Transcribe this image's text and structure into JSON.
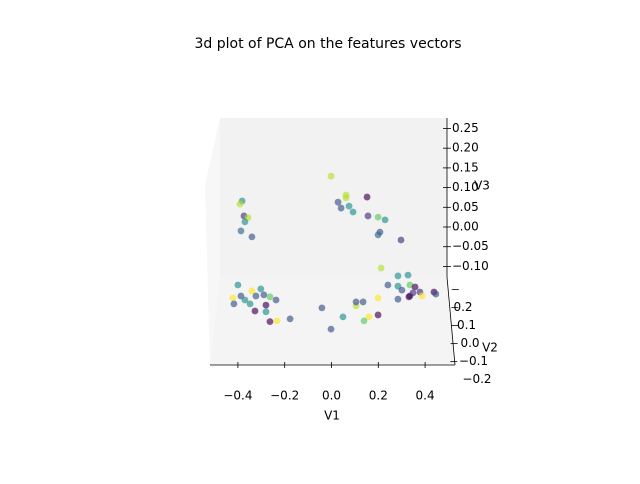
{
  "chart_data": {
    "type": "scatter3d",
    "title": "3d plot of PCA on the features vectors",
    "xlabel": "V1",
    "ylabel": "V2",
    "zlabel": "V3",
    "xlim": [
      -0.52,
      0.53
    ],
    "ylim": [
      -0.2,
      0.27
    ],
    "zlim": [
      -0.127,
      0.277
    ],
    "xticks": [
      {
        "value": -0.4,
        "label": "−0.4"
      },
      {
        "value": -0.2,
        "label": "−0.2"
      },
      {
        "value": 0,
        "label": "0.0"
      },
      0.2,
      0.4
    ],
    "yticks": [
      {
        "value": -0.2,
        "label": "−0.2"
      },
      {
        "value": -0.1,
        "label": "−0.1"
      },
      {
        "value": 0,
        "label": "0.0"
      },
      0.1,
      0.2
    ],
    "zticks": [
      {
        "value": -0.1,
        "label": "−0.10"
      },
      {
        "value": -0.05,
        "label": "−0.05"
      },
      {
        "value": 0,
        "label": "0.00"
      },
      0.05,
      {
        "value": 0.1,
        "label": "0.10"
      },
      0.15,
      {
        "value": 0.2,
        "label": "0.20"
      },
      0.25
    ],
    "series": [
      {
        "x": [
          -0.382,
          -0.391,
          -0.374,
          -0.357,
          -0.37,
          -0.387,
          -0.34,
          -0.002,
          0.062,
          0.062,
          0.152,
          0.028,
          0.075,
          0.041,
          0.092,
          0.156,
          0.199,
          0.229,
          0.207,
          0.199,
          0.297,
          0.212,
          0.284,
          0.327,
          0.241,
          0.284,
          0.335,
          0.357,
          0.301,
          0.378,
          0.335,
          0.348,
          0.284,
          0.387,
          0.438,
          0.446,
          0.199,
          0.331,
          -0.4,
          -0.421,
          -0.417,
          -0.387,
          -0.37,
          -0.34,
          -0.302,
          -0.323,
          -0.289,
          -0.263,
          -0.237,
          -0.28,
          -0.348,
          -0.327,
          -0.28,
          -0.263,
          -0.233,
          -0.177,
          -0.041,
          -0.002,
          0.049,
          0.105,
          0.135,
          0.16,
          0.199,
          0.139,
          0.105
        ],
        "y": [
          0.2,
          0.2,
          0.2,
          0.2,
          0.2,
          0.2,
          0.2,
          0.2,
          0.2,
          0.2,
          0.2,
          0.2,
          0.2,
          0.2,
          0.2,
          0.2,
          0.2,
          0.2,
          0.2,
          0.2,
          0.2,
          -0.05,
          -0.05,
          -0.05,
          -0.05,
          -0.05,
          -0.05,
          -0.05,
          -0.05,
          -0.05,
          -0.05,
          -0.05,
          -0.05,
          -0.05,
          -0.05,
          -0.05,
          -0.05,
          -0.05,
          -0.05,
          -0.05,
          -0.05,
          -0.05,
          -0.05,
          -0.05,
          -0.05,
          -0.05,
          -0.05,
          -0.05,
          -0.05,
          -0.05,
          -0.05,
          -0.05,
          -0.05,
          -0.05,
          -0.05,
          -0.05,
          -0.05,
          -0.05,
          -0.05,
          -0.05,
          -0.05,
          -0.05,
          -0.05,
          -0.05,
          -0.05
        ],
        "z": [
          0.098,
          0.09,
          0.06,
          0.056,
          0.045,
          0.022,
          0.007,
          0.161,
          0.113,
          0.106,
          0.108,
          0.095,
          0.085,
          0.08,
          0.07,
          0.06,
          0.057,
          0.05,
          0.019,
          0.012,
          -0.001,
          0.042,
          0.022,
          0.024,
          -0.001,
          -0.004,
          -0.001,
          -0.006,
          -0.014,
          -0.019,
          -0.029,
          -0.021,
          -0.037,
          -0.029,
          -0.019,
          -0.024,
          -0.034,
          -0.031,
          -0.001,
          -0.034,
          -0.049,
          -0.029,
          -0.039,
          -0.016,
          -0.011,
          -0.029,
          -0.026,
          -0.031,
          -0.039,
          -0.052,
          -0.049,
          -0.067,
          -0.069,
          -0.094,
          -0.092,
          -0.087,
          -0.059,
          -0.113,
          -0.082,
          -0.054,
          -0.044,
          -0.082,
          -0.077,
          -0.092,
          -0.044
        ],
        "colors": [
          "#21918c",
          "#b5de2b",
          "#46337e",
          "#b5de2b",
          "#21918c",
          "#31688e",
          "#3b528b",
          "#b5de2b",
          "#b5de2b",
          "#b5de2b",
          "#440154",
          "#3b528b",
          "#21918c",
          "#3b528b",
          "#21918c",
          "#46337e",
          "#5ec962",
          "#21918c",
          "#3b528b",
          "#31688e",
          "#46337e",
          "#b5de2b",
          "#21918c",
          "#21918c",
          "#3b528b",
          "#21918c",
          "#5ec962",
          "#440154",
          "#3b528b",
          "#46337e",
          "#46337e",
          "#46337e",
          "#3b528b",
          "#fde725",
          "#440154",
          "#3b528b",
          "#fde725",
          "#440154",
          "#21918c",
          "#fde725",
          "#3b528b",
          "#3b528b",
          "#21918c",
          "#fde725",
          "#21918c",
          "#3b528b",
          "#3b528b",
          "#5ec962",
          "#3b528b",
          "#440154",
          "#21918c",
          "#440154",
          "#21918c",
          "#440154",
          "#fde725",
          "#3b528b",
          "#3b528b",
          "#3b528b",
          "#21918c",
          "#b5de2b",
          "#3b528b",
          "#fde725",
          "#440154",
          "#5ec962",
          "#3b528b"
        ]
      }
    ]
  }
}
